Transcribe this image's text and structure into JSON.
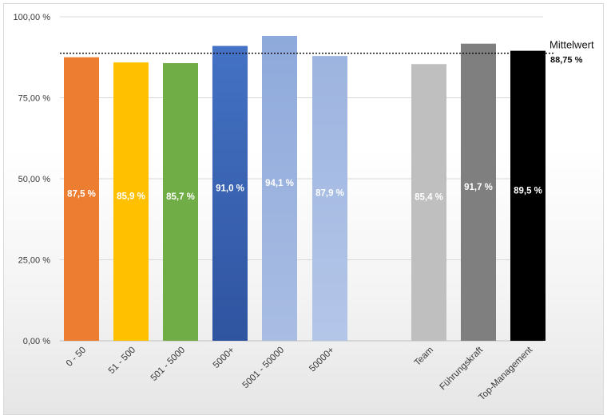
{
  "chart_data": {
    "type": "bar",
    "categories": [
      "0 - 50",
      "51 - 500",
      "501 - 5000",
      "5000+",
      "5001 - 50000",
      "50000+",
      "Team",
      "Führungskraft",
      "Top-Management"
    ],
    "values": [
      87.5,
      85.9,
      85.7,
      91.0,
      94.1,
      87.9,
      85.4,
      91.7,
      89.5
    ],
    "value_labels": [
      "87,5 %",
      "85,9 %",
      "85,7 %",
      "91,0 %",
      "94,1 %",
      "87,9 %",
      "85,4 %",
      "91,7 %",
      "89,5 %"
    ],
    "colors": [
      "#ed7d31",
      "#ffc000",
      "#70ad47",
      "#3f6cc0",
      "#8ea9db",
      "#8fa9dc",
      "#bfbfbf",
      "#7f7f7f",
      "#000000"
    ],
    "ylim": [
      0,
      100
    ],
    "yticks": [
      0,
      25,
      50,
      75,
      100
    ],
    "ytick_labels": [
      "0,00 %",
      "25,00 %",
      "50,00 %",
      "75,00 %",
      "100,00 %"
    ],
    "gridlines": true,
    "reference_line": {
      "label": "Mittelwert",
      "value": 88.75,
      "value_label": "88,75 %",
      "style": "dotted"
    },
    "title": "",
    "xlabel": "",
    "ylabel": ""
  }
}
